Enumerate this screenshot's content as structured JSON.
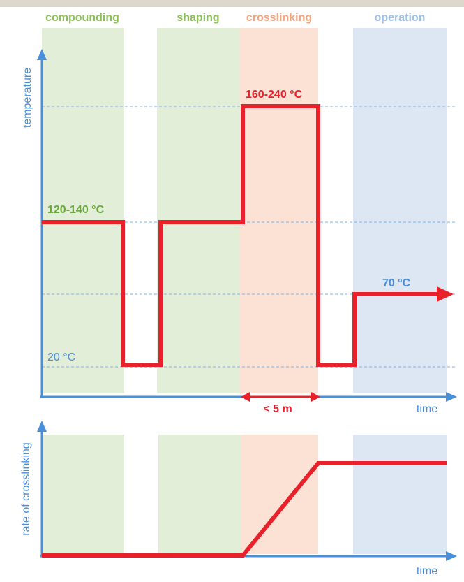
{
  "phases": [
    "compounding",
    "shaping",
    "crosslinking",
    "operation"
  ],
  "top_chart": {
    "y_axis_label": "temperature",
    "x_axis_label": "time",
    "annotations": [
      "120-140 °C",
      "160-240 °C",
      "70 °C",
      "20 °C"
    ],
    "duration": "< 5 m"
  },
  "bottom_chart": {
    "y_axis_label": "rate of crosslinking",
    "x_axis_label": "time"
  }
}
